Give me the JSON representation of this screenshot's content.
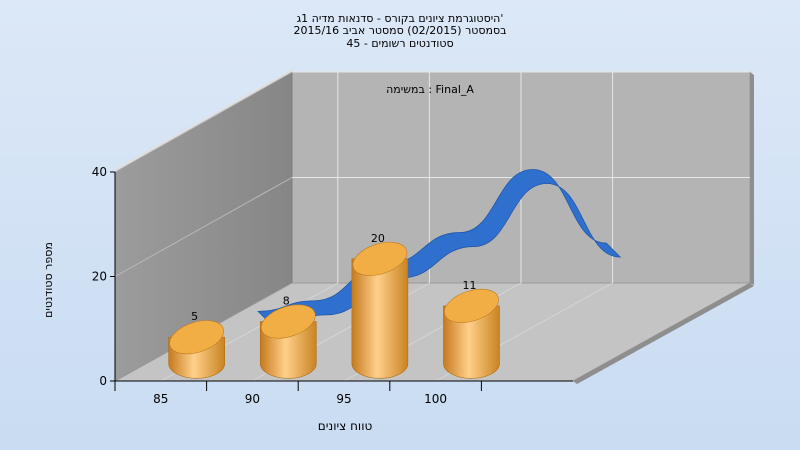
{
  "chart_data": {
    "type": "bar",
    "title": [
      "היסטוגרמת ציונים בקורס - סדנאות מדיה 1ג'",
      "בסמסטר  (02/2015)  סמסטר אביב 2015/16",
      "סטודנטים רשומים - 45"
    ],
    "xlabel": "טווח ציונים",
    "ylabel": "מספר סטודנטים",
    "annotation": "במשימה : Final_A",
    "ylim": [
      0,
      40
    ],
    "y_ticks": [
      0,
      20,
      40
    ],
    "x_ticks": [
      85,
      90,
      95,
      100
    ],
    "categories": [
      "85",
      "90",
      "95",
      "100"
    ],
    "series": [
      {
        "values": [
          5,
          8,
          20,
          11
        ],
        "style": "cylinder",
        "color": "#e8a640"
      },
      {
        "values": [
          3,
          5,
          12,
          18,
          30,
          16
        ],
        "x": [
          85,
          88,
          92,
          96,
          100,
          104
        ],
        "style": "ribbon",
        "color": "#2f6fce"
      }
    ],
    "grid": true
  }
}
